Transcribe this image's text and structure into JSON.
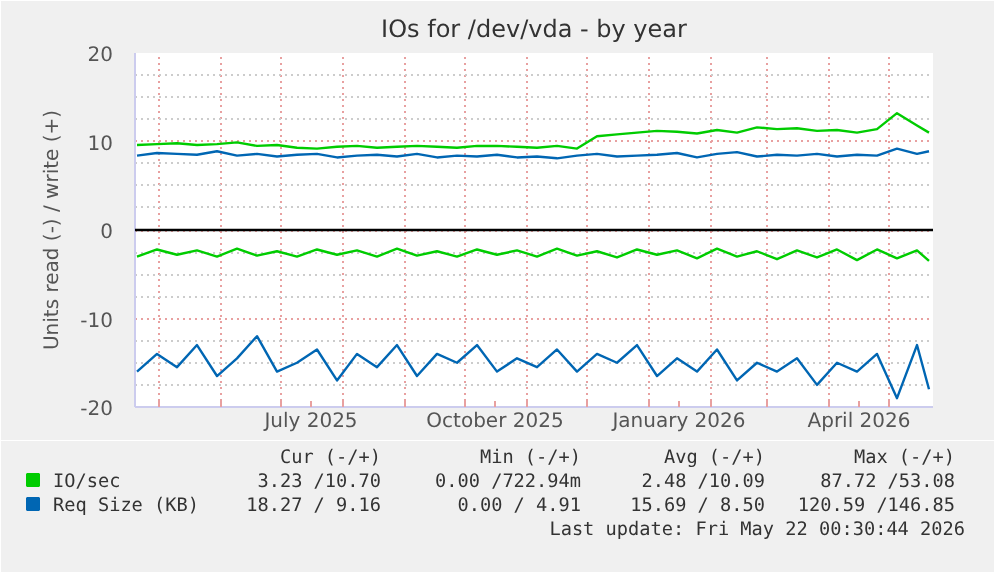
{
  "chart_data": {
    "type": "line",
    "title": "IOs for /dev/vda - by year",
    "ylabel": "Units read (-) / write (+)",
    "x": [
      "2025-04-20",
      "2025-04-30",
      "2025-05-10",
      "2025-05-20",
      "2025-05-30",
      "2025-06-09",
      "2025-06-19",
      "2025-06-29",
      "2025-07-09",
      "2025-07-19",
      "2025-07-29",
      "2025-08-08",
      "2025-08-18",
      "2025-08-28",
      "2025-09-07",
      "2025-09-17",
      "2025-09-27",
      "2025-10-07",
      "2025-10-17",
      "2025-10-27",
      "2025-11-06",
      "2025-11-16",
      "2025-11-26",
      "2025-12-06",
      "2025-12-16",
      "2025-12-26",
      "2026-01-05",
      "2026-01-15",
      "2026-01-25",
      "2026-02-04",
      "2026-02-14",
      "2026-02-24",
      "2026-03-06",
      "2026-03-16",
      "2026-03-26",
      "2026-04-05",
      "2026-04-15",
      "2026-04-25",
      "2026-05-05",
      "2026-05-15",
      "2026-05-21"
    ],
    "series": [
      {
        "name": "IO/sec",
        "color": "#00cc00",
        "values": [
          9.6,
          9.7,
          9.8,
          9.6,
          9.7,
          9.9,
          9.5,
          9.6,
          9.3,
          9.2,
          9.4,
          9.5,
          9.3,
          9.4,
          9.5,
          9.4,
          9.3,
          9.5,
          9.5,
          9.4,
          9.3,
          9.5,
          9.2,
          10.6,
          10.8,
          11.0,
          11.2,
          11.1,
          10.9,
          11.3,
          11.0,
          11.6,
          11.4,
          11.5,
          11.2,
          11.3,
          11.0,
          11.4,
          13.2,
          11.8,
          11.0
        ]
      },
      {
        "color": "#00cc00",
        "values": [
          -3.0,
          -2.2,
          -2.8,
          -2.3,
          -3.0,
          -2.1,
          -2.9,
          -2.4,
          -3.0,
          -2.2,
          -2.8,
          -2.3,
          -3.0,
          -2.1,
          -2.9,
          -2.4,
          -3.0,
          -2.2,
          -2.8,
          -2.3,
          -3.0,
          -2.1,
          -2.9,
          -2.4,
          -3.1,
          -2.2,
          -2.8,
          -2.3,
          -3.2,
          -2.1,
          -3.0,
          -2.4,
          -3.3,
          -2.3,
          -3.1,
          -2.2,
          -3.4,
          -2.2,
          -3.2,
          -2.3,
          -3.5
        ]
      },
      {
        "name": "Req Size (KB)",
        "color": "#0066b3",
        "values": [
          8.4,
          8.7,
          8.6,
          8.5,
          8.9,
          8.4,
          8.6,
          8.3,
          8.5,
          8.6,
          8.2,
          8.4,
          8.5,
          8.3,
          8.6,
          8.2,
          8.4,
          8.3,
          8.5,
          8.2,
          8.3,
          8.1,
          8.4,
          8.6,
          8.3,
          8.4,
          8.5,
          8.7,
          8.2,
          8.6,
          8.8,
          8.3,
          8.5,
          8.4,
          8.6,
          8.3,
          8.5,
          8.4,
          9.2,
          8.6,
          8.9
        ]
      },
      {
        "color": "#0066b3",
        "values": [
          -16,
          -14,
          -15.5,
          -13,
          -16.5,
          -14.5,
          -12,
          -16,
          -15,
          -13.5,
          -17,
          -14,
          -15.5,
          -13,
          -16.5,
          -14,
          -15,
          -13,
          -16,
          -14.5,
          -15.5,
          -13.5,
          -16,
          -14,
          -15,
          -13,
          -16.5,
          -14.5,
          -16,
          -13.5,
          -17,
          -15,
          -16,
          -14.5,
          -17.5,
          -15,
          -16,
          -14,
          -19,
          -13,
          -18
        ]
      }
    ],
    "xlim": [
      "2025-04-19",
      "2026-05-23"
    ],
    "xticks": [
      {
        "value": "2025-05-01",
        "label": null
      },
      {
        "value": "2025-06-01",
        "label": null
      },
      {
        "value": "2025-07-01",
        "label": null
      },
      {
        "value": "2025-07-16",
        "label": "July 2025"
      },
      {
        "value": "2025-08-01",
        "label": null
      },
      {
        "value": "2025-09-01",
        "label": null
      },
      {
        "value": "2025-10-01",
        "label": null
      },
      {
        "value": "2025-10-16",
        "label": "October 2025"
      },
      {
        "value": "2025-11-01",
        "label": null
      },
      {
        "value": "2025-12-01",
        "label": null
      },
      {
        "value": "2026-01-01",
        "label": null
      },
      {
        "value": "2026-01-16",
        "label": "January 2026"
      },
      {
        "value": "2026-02-01",
        "label": null
      },
      {
        "value": "2026-03-01",
        "label": null
      },
      {
        "value": "2026-04-01",
        "label": null
      },
      {
        "value": "2026-04-16",
        "label": "April 2026"
      },
      {
        "value": "2026-05-01",
        "label": null
      }
    ],
    "ylim": [
      -20,
      20
    ],
    "yticks": [
      -20,
      -10,
      0,
      10,
      20
    ],
    "grid": true,
    "legend": "bottom left",
    "ref_lines": [
      {
        "axis": "y",
        "value": 0,
        "color": "#000000"
      }
    ],
    "annotations": [
      "Cur (-/+)",
      "Min (-/+)",
      "Avg (-/+)",
      "Max (-/+)",
      "3.23 /10.70",
      "0.00 /722.94m",
      "2.48 /10.09",
      "87.72 /53.08",
      "18.27 / 9.16",
      "0.00 / 4.91",
      "15.69 / 8.50",
      "120.59 /146.85",
      "Last update: Fri May 22 00:30:44 2026"
    ]
  }
}
